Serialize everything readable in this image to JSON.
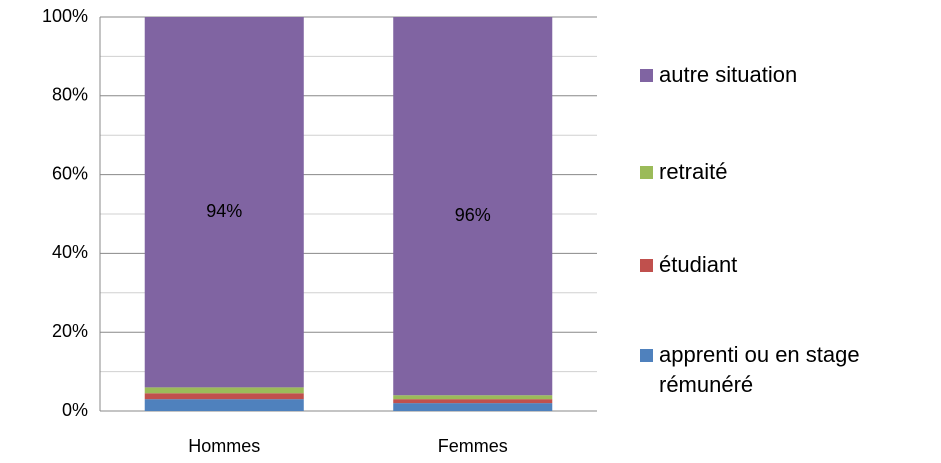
{
  "chart_data": {
    "type": "stacked_bar",
    "categories": [
      "Hommes",
      "Femmes"
    ],
    "series": [
      {
        "name": "apprenti ou en stage rémunéré",
        "color": "#4f81bd",
        "values": [
          3,
          2
        ]
      },
      {
        "name": "étudiant",
        "color": "#c0504d",
        "values": [
          1.5,
          1
        ]
      },
      {
        "name": "retraité",
        "color": "#9bbb59",
        "values": [
          1.5,
          1
        ]
      },
      {
        "name": "autre situation",
        "color": "#8064a2",
        "values": [
          94,
          96
        ],
        "value_labels": [
          "94%",
          "96%"
        ]
      }
    ],
    "ylim": [
      0,
      100
    ],
    "yticks": [
      {
        "value": 0,
        "label": "0%"
      },
      {
        "value": 20,
        "label": "20%"
      },
      {
        "value": 40,
        "label": "40%"
      },
      {
        "value": 60,
        "label": "60%"
      },
      {
        "value": 80,
        "label": "80%"
      },
      {
        "value": 100,
        "label": "100%"
      }
    ],
    "minor_yticks": [
      10,
      30,
      50,
      70,
      90
    ],
    "grid": true,
    "legend": "right"
  }
}
